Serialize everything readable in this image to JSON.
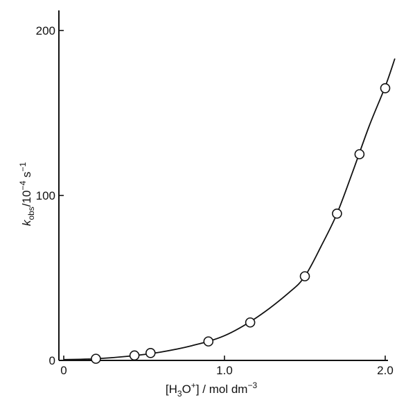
{
  "chart_data": {
    "type": "scatter",
    "title": "",
    "xlabel": {
      "parts": [
        {
          "t": "[H"
        },
        {
          "t": "3",
          "sub": true
        },
        {
          "t": "O"
        },
        {
          "t": "+",
          "sup": true
        },
        {
          "t": "] / mol dm"
        },
        {
          "t": "−3",
          "sup": true
        }
      ]
    },
    "ylabel": {
      "parts": [
        {
          "t": "k",
          "italic": true
        },
        {
          "t": "obs",
          "sub": true
        },
        {
          "t": "/10"
        },
        {
          "t": "−4",
          "sup": true
        },
        {
          "t": " s"
        },
        {
          "t": "−1",
          "sup": true
        }
      ]
    },
    "xlim": [
      0,
      2.0
    ],
    "ylim": [
      0,
      200
    ],
    "x_ticks": [
      {
        "value": 0,
        "label": "0"
      },
      {
        "value": 1.0,
        "label": "1.0"
      },
      {
        "value": 2.0,
        "label": "2.0"
      }
    ],
    "y_ticks": [
      {
        "value": 0,
        "label": "0"
      },
      {
        "value": 100,
        "label": "100"
      },
      {
        "value": 200,
        "label": "200"
      }
    ],
    "grid": false,
    "series": [
      {
        "marker": "open-circle",
        "x": [
          0.2,
          0.44,
          0.54,
          0.9,
          1.16,
          1.5,
          1.7,
          1.84,
          2.0
        ],
        "y": [
          1,
          3,
          4.5,
          11.5,
          23,
          51,
          89,
          125,
          165
        ]
      }
    ],
    "fit_curve": {
      "style": "solid",
      "x": [
        0,
        0.2,
        0.4,
        0.6,
        0.8,
        1.0,
        1.2,
        1.4,
        1.5,
        1.6,
        1.7,
        1.8,
        1.9,
        2.0,
        2.06
      ],
      "y": [
        0.5,
        1,
        2.5,
        5,
        9,
        15,
        26,
        41,
        51,
        69,
        89,
        115,
        142,
        166,
        183
      ]
    }
  }
}
